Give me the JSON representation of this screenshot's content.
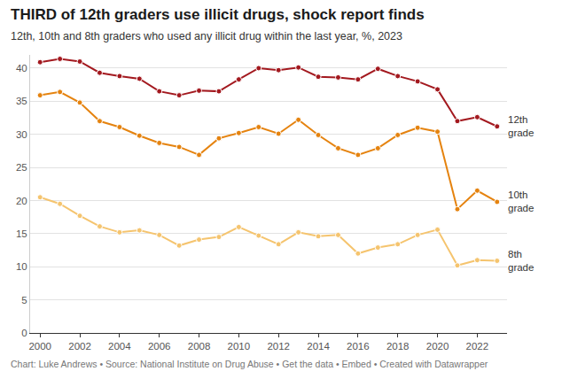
{
  "chart_data": {
    "type": "line",
    "title": "THIRD of 12th graders use illicit drugs, shock report finds",
    "subtitle": "12th, 10th and 8th graders who used any illicit drug within the last year, %, 2023",
    "footer": "Chart: Luke Andrews • Source: National Institute on Drug Abuse • Get the data • Embed • Created with Datawrapper",
    "x": [
      2000,
      2001,
      2002,
      2003,
      2004,
      2005,
      2006,
      2007,
      2008,
      2009,
      2010,
      2011,
      2012,
      2013,
      2014,
      2015,
      2016,
      2017,
      2018,
      2019,
      2020,
      2021,
      2022,
      2023
    ],
    "series": [
      {
        "name": "12th grade",
        "color": "#a3191f",
        "values": [
          40.9,
          41.4,
          41.0,
          39.3,
          38.8,
          38.4,
          36.5,
          35.9,
          36.6,
          36.5,
          38.3,
          40.0,
          39.7,
          40.1,
          38.7,
          38.6,
          38.3,
          39.9,
          38.8,
          38.0,
          36.8,
          32.0,
          32.6,
          31.2
        ]
      },
      {
        "name": "10th grade",
        "color": "#e5830f",
        "values": [
          35.9,
          36.4,
          34.8,
          32.0,
          31.1,
          29.8,
          28.7,
          28.1,
          26.9,
          29.4,
          30.2,
          31.1,
          30.1,
          32.2,
          29.9,
          27.9,
          26.9,
          27.9,
          29.9,
          31.0,
          30.4,
          18.7,
          21.5,
          19.8
        ]
      },
      {
        "name": "8th grade",
        "color": "#f5c46e",
        "values": [
          20.5,
          19.5,
          17.7,
          16.1,
          15.2,
          15.5,
          14.8,
          13.2,
          14.1,
          14.5,
          16.0,
          14.7,
          13.4,
          15.2,
          14.6,
          14.8,
          12.0,
          12.9,
          13.4,
          14.8,
          15.6,
          10.2,
          11.0,
          10.9
        ]
      }
    ],
    "xlim": [
      1999.5,
      2023.5
    ],
    "xticks": [
      2000,
      2002,
      2004,
      2006,
      2008,
      2010,
      2012,
      2014,
      2016,
      2018,
      2020,
      2022
    ],
    "ylim": [
      0,
      42
    ],
    "yticks": [
      0,
      5,
      10,
      15,
      20,
      25,
      30,
      35,
      40
    ],
    "grid": true,
    "marker": "circle",
    "line_style": "solid"
  }
}
